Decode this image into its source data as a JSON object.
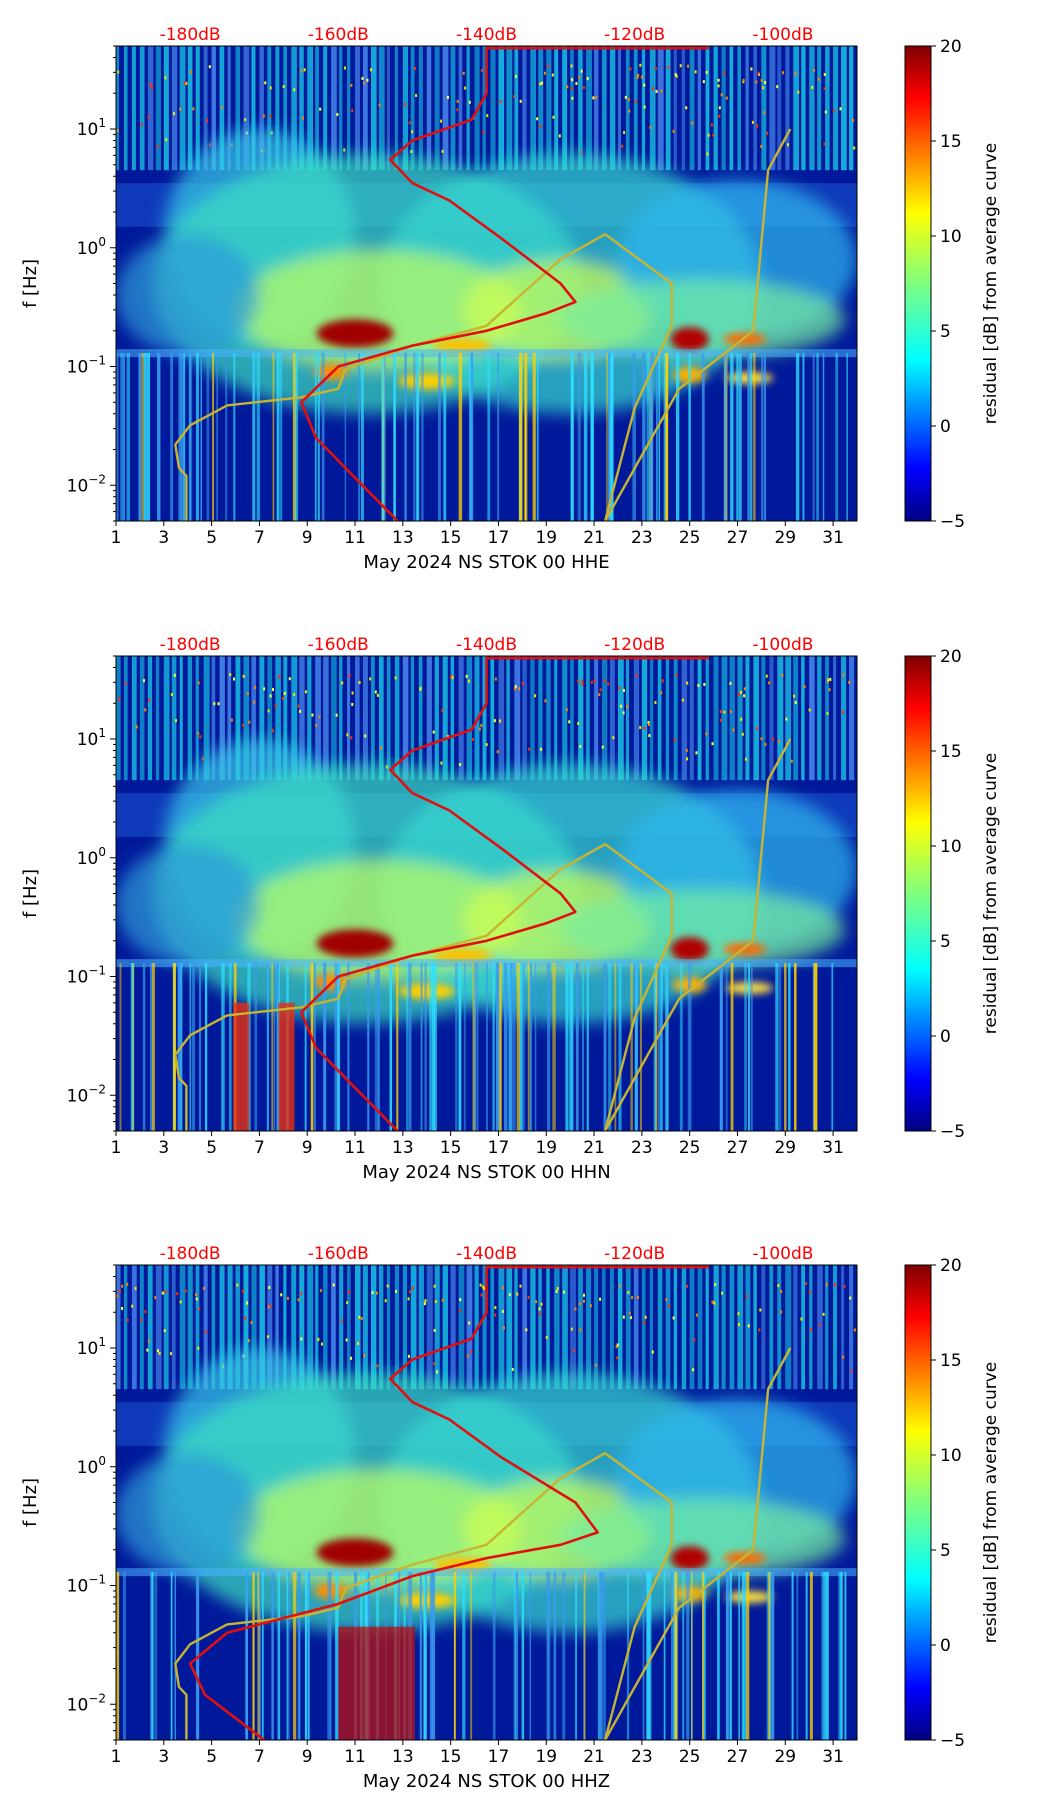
{
  "colors": {
    "db_scale_text": "#ff0000",
    "noise_model_curve": "#c8b432",
    "median_psd_curve": "#e01010",
    "axis": "#000000"
  },
  "shared": {
    "ylabel": "f [Hz]",
    "colorbar_label": "residual [dB] from average curve",
    "colorbar_ticks": [
      "−5",
      "0",
      "5",
      "10",
      "15",
      "20"
    ],
    "colorbar_range": [
      -5,
      20
    ],
    "colormap": "jet",
    "x_ticks": [
      "1",
      "3",
      "5",
      "7",
      "9",
      "11",
      "13",
      "15",
      "17",
      "19",
      "21",
      "23",
      "25",
      "27",
      "29",
      "31"
    ],
    "y_ticks": [
      {
        "base": "10",
        "exp": "1",
        "f": 10
      },
      {
        "base": "10",
        "exp": "0",
        "f": 1
      },
      {
        "base": "10",
        "exp": "−1",
        "f": 0.1
      },
      {
        "base": "10",
        "exp": "−2",
        "f": 0.01
      }
    ],
    "y_range_hz": [
      0.005,
      50
    ],
    "y_scale": "log",
    "x_range_day": [
      1,
      32
    ],
    "db_scale_labels": [
      "-180dB",
      "-160dB",
      "-140dB",
      "-120dB",
      "-100dB"
    ],
    "db_scale_range": [
      -190,
      -90
    ]
  },
  "chart_data": [
    {
      "type": "heatmap",
      "xlabel": "May 2024 NS STOK 00 HHE",
      "ylabel": "f [Hz]",
      "series": [
        {
          "role": "noise model (top dB scale)",
          "x_db": [
            -180.5,
            -180.5,
            -181.5,
            -182,
            -180,
            -175,
            -165,
            -160,
            -159,
            -150,
            -140,
            -135,
            -130,
            -124,
            -124,
            -115,
            -115,
            -120,
            -124,
            -114,
            -104,
            -102,
            -99
          ],
          "f_hz": [
            0.005,
            0.012,
            0.014,
            0.022,
            0.032,
            0.047,
            0.055,
            0.065,
            0.095,
            0.15,
            0.22,
            0.42,
            0.8,
            1.3,
            1.3,
            0.5,
            0.22,
            0.045,
            0.005,
            0.065,
            0.2,
            4.5,
            10
          ]
        },
        {
          "role": "median PSD (top dB scale)",
          "x_db": [
            -152,
            -158,
            -163,
            -165,
            -160,
            -150,
            -140,
            -132,
            -128,
            -130,
            -138,
            -145,
            -150,
            -153,
            -150,
            -142,
            -140,
            -140,
            -140,
            -110
          ],
          "f_hz": [
            0.005,
            0.012,
            0.025,
            0.05,
            0.1,
            0.15,
            0.2,
            0.28,
            0.35,
            0.5,
            1.2,
            2.5,
            3.5,
            5.5,
            8,
            12,
            20,
            40,
            48,
            48
          ]
        }
      ]
    },
    {
      "type": "heatmap",
      "xlabel": "May 2024 NS STOK 00 HHN",
      "ylabel": "f [Hz]",
      "series": [
        {
          "role": "noise model (top dB scale)",
          "x_db": [
            -180.5,
            -180.5,
            -181.5,
            -182,
            -180,
            -175,
            -165,
            -160,
            -159,
            -150,
            -140,
            -135,
            -130,
            -124,
            -124,
            -115,
            -115,
            -120,
            -124,
            -114,
            -104,
            -102,
            -99
          ],
          "f_hz": [
            0.005,
            0.012,
            0.014,
            0.022,
            0.032,
            0.047,
            0.055,
            0.065,
            0.095,
            0.15,
            0.22,
            0.42,
            0.8,
            1.3,
            1.3,
            0.5,
            0.22,
            0.045,
            0.005,
            0.065,
            0.2,
            4.5,
            10
          ]
        },
        {
          "role": "median PSD (top dB scale)",
          "x_db": [
            -152,
            -158,
            -163,
            -165,
            -160,
            -150,
            -140,
            -132,
            -128,
            -130,
            -138,
            -145,
            -150,
            -153,
            -150,
            -142,
            -140,
            -140,
            -140,
            -110
          ],
          "f_hz": [
            0.005,
            0.012,
            0.025,
            0.05,
            0.1,
            0.15,
            0.2,
            0.28,
            0.35,
            0.5,
            1.2,
            2.5,
            3.5,
            5.5,
            8,
            12,
            20,
            40,
            48,
            48
          ]
        }
      ]
    },
    {
      "type": "heatmap",
      "xlabel": "May 2024 NS STOK 00 HHZ",
      "ylabel": "f [Hz]",
      "series": [
        {
          "role": "noise model (top dB scale)",
          "x_db": [
            -180.5,
            -180.5,
            -181.5,
            -182,
            -180,
            -175,
            -165,
            -160,
            -159,
            -150,
            -140,
            -135,
            -130,
            -124,
            -124,
            -115,
            -115,
            -120,
            -124,
            -114,
            -104,
            -102,
            -99
          ],
          "f_hz": [
            0.005,
            0.012,
            0.014,
            0.022,
            0.032,
            0.047,
            0.055,
            0.065,
            0.095,
            0.15,
            0.22,
            0.42,
            0.8,
            1.3,
            1.3,
            0.5,
            0.22,
            0.045,
            0.005,
            0.065,
            0.2,
            4.5,
            10
          ]
        },
        {
          "role": "median PSD (top dB scale)",
          "x_db": [
            -170,
            -178,
            -180,
            -175,
            -160,
            -150,
            -140,
            -130,
            -125,
            -128,
            -138,
            -145,
            -150,
            -153,
            -150,
            -142,
            -140,
            -140,
            -140,
            -110
          ],
          "f_hz": [
            0.005,
            0.012,
            0.022,
            0.04,
            0.07,
            0.12,
            0.17,
            0.22,
            0.28,
            0.5,
            1.2,
            2.5,
            3.5,
            5.5,
            8,
            12,
            20,
            40,
            48,
            48
          ]
        }
      ]
    }
  ]
}
